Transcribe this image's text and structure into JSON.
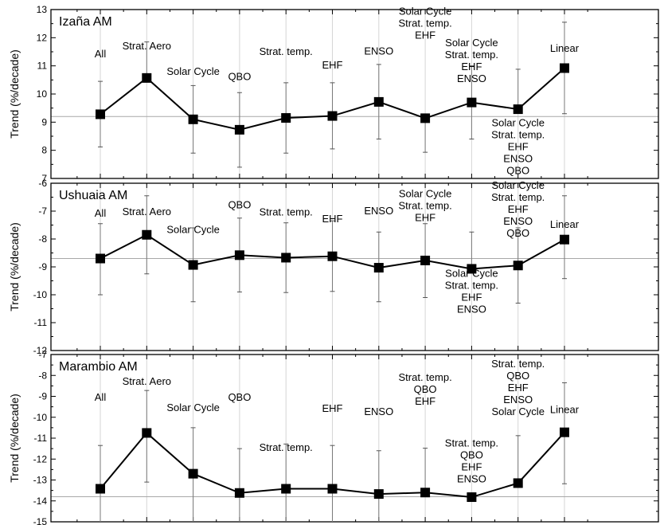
{
  "chart_data": [
    {
      "type": "line",
      "title": "Izaña AM",
      "ylabel": "Trend (%/decade)",
      "ylim": [
        7,
        13
      ],
      "yticks": [
        7,
        8,
        9,
        10,
        11,
        12,
        13
      ],
      "reference_line": 9.2,
      "grid": "vertical",
      "x": [
        1,
        2,
        3,
        4,
        5,
        6,
        7,
        8,
        9,
        10,
        11
      ],
      "values": [
        9.28,
        10.57,
        9.1,
        8.73,
        9.15,
        9.22,
        9.72,
        9.14,
        9.7,
        9.46,
        10.92
      ],
      "err_low": [
        8.12,
        10.57,
        7.9,
        7.4,
        7.9,
        8.05,
        8.4,
        7.93,
        8.4,
        9.46,
        9.3
      ],
      "err_high": [
        10.45,
        11.85,
        10.3,
        10.05,
        10.4,
        10.4,
        11.05,
        9.14,
        11.0,
        10.88,
        12.55
      ],
      "annotations": [
        {
          "x": 1,
          "y": 11.3,
          "lines": [
            "All"
          ]
        },
        {
          "x": 2,
          "y": 11.58,
          "lines": [
            "Strat. Aero"
          ]
        },
        {
          "x": 3,
          "y": 10.68,
          "lines": [
            "Solar Cycle"
          ]
        },
        {
          "x": 4,
          "y": 10.5,
          "lines": [
            "QBO"
          ]
        },
        {
          "x": 5,
          "y": 11.38,
          "lines": [
            "Strat. temp."
          ]
        },
        {
          "x": 6,
          "y": 10.9,
          "lines": [
            "EHF"
          ]
        },
        {
          "x": 7,
          "y": 11.4,
          "lines": [
            "ENSO"
          ]
        },
        {
          "x": 8,
          "y": 12.82,
          "lines": [
            "Solar Cycle",
            "Strat. temp.",
            "EHF"
          ]
        },
        {
          "x": 9,
          "y": 11.7,
          "lines": [
            "Solar Cycle",
            "Strat. temp.",
            "EHF",
            "ENSO"
          ]
        },
        {
          "x": 10,
          "y": 8.85,
          "lines": [
            "Solar Cycle",
            "Strat. temp.",
            "EHF",
            "ENSO",
            "QBO"
          ]
        },
        {
          "x": 11,
          "y": 11.5,
          "lines": [
            "Linear"
          ]
        }
      ]
    },
    {
      "type": "line",
      "title": "Ushuaia AM",
      "ylabel": "Trend (%/decade)",
      "ylim": [
        -12,
        -6
      ],
      "yticks": [
        -12,
        -11,
        -10,
        -9,
        -8,
        -7,
        -6
      ],
      "reference_line": -8.7,
      "grid": "vertical",
      "x": [
        1,
        2,
        3,
        4,
        5,
        6,
        7,
        8,
        9,
        10,
        11
      ],
      "values": [
        -8.7,
        -7.85,
        -8.93,
        -8.58,
        -8.67,
        -8.62,
        -9.03,
        -8.77,
        -9.07,
        -8.95,
        -8.02
      ],
      "err_low": [
        -10.0,
        -9.25,
        -10.25,
        -9.9,
        -9.92,
        -9.88,
        -10.25,
        -10.1,
        -9.07,
        -10.3,
        -9.42
      ],
      "err_high": [
        -7.45,
        -6.45,
        -7.6,
        -7.25,
        -7.42,
        -7.35,
        -7.75,
        -7.45,
        -7.75,
        -7.6,
        -6.45
      ],
      "annotations": [
        {
          "x": 1,
          "y": -7.2,
          "lines": [
            "All"
          ]
        },
        {
          "x": 2,
          "y": -7.14,
          "lines": [
            "Strat. Aero"
          ]
        },
        {
          "x": 3,
          "y": -7.78,
          "lines": [
            "Solar Cycle"
          ]
        },
        {
          "x": 4,
          "y": -6.9,
          "lines": [
            "QBO"
          ]
        },
        {
          "x": 5,
          "y": -7.15,
          "lines": [
            "Strat. temp."
          ]
        },
        {
          "x": 6,
          "y": -7.4,
          "lines": [
            "EHF"
          ]
        },
        {
          "x": 7,
          "y": -7.12,
          "lines": [
            "ENSO"
          ]
        },
        {
          "x": 8,
          "y": -6.5,
          "lines": [
            "Solar Cycle",
            "Strat. temp.",
            "EHF"
          ]
        },
        {
          "x": 9,
          "y": -9.35,
          "lines": [
            "Solar Cycle",
            "Strat. temp.",
            "EHF",
            "ENSO"
          ]
        },
        {
          "x": 10,
          "y": -6.2,
          "lines": [
            "Solar Cycle",
            "Strat. temp.",
            "EHF",
            "ENSO",
            "QBO"
          ]
        },
        {
          "x": 11,
          "y": -7.6,
          "lines": [
            "Linear"
          ]
        }
      ]
    },
    {
      "type": "line",
      "title": "Marambio AM",
      "ylabel": "Trend (%/decade)",
      "ylim": [
        -15,
        -7
      ],
      "yticks": [
        -15,
        -14,
        -13,
        -12,
        -11,
        -10,
        -9,
        -8,
        -7
      ],
      "reference_line": -13.8,
      "grid": "vertical",
      "x": [
        1,
        2,
        3,
        4,
        5,
        6,
        7,
        8,
        9,
        10,
        11
      ],
      "values": [
        -13.42,
        -10.75,
        -12.7,
        -13.62,
        -13.42,
        -13.42,
        -13.67,
        -13.6,
        -13.82,
        -13.15,
        -10.72
      ],
      "err_low": [
        -15.0,
        -13.1,
        -15.0,
        -15.0,
        -15.0,
        -15.0,
        -15.0,
        -13.6,
        -13.82,
        -13.15,
        -13.18
      ],
      "err_high": [
        -11.35,
        -8.72,
        -10.5,
        -11.5,
        -11.28,
        -11.35,
        -11.6,
        -11.48,
        -13.82,
        -10.88,
        -8.35
      ],
      "annotations": [
        {
          "x": 1,
          "y": -9.2,
          "lines": [
            "All"
          ]
        },
        {
          "x": 2,
          "y": -8.45,
          "lines": [
            "Strat. Aero"
          ]
        },
        {
          "x": 3,
          "y": -9.7,
          "lines": [
            "Solar Cycle"
          ]
        },
        {
          "x": 4,
          "y": -9.2,
          "lines": [
            "QBO"
          ]
        },
        {
          "x": 5,
          "y": -11.6,
          "lines": [
            "Strat. temp."
          ]
        },
        {
          "x": 6,
          "y": -9.75,
          "lines": [
            "EHF"
          ]
        },
        {
          "x": 7,
          "y": -9.9,
          "lines": [
            "ENSO"
          ]
        },
        {
          "x": 8,
          "y": -8.25,
          "lines": [
            "Strat. temp.",
            "QBO",
            "EHF"
          ]
        },
        {
          "x": 9,
          "y": -11.4,
          "lines": [
            "Strat. temp.",
            "QBO",
            "EHF",
            "ENSO"
          ]
        },
        {
          "x": 10,
          "y": -7.6,
          "lines": [
            "Strat. temp.",
            "QBO",
            "EHF",
            "ENSO",
            "Solar Cycle"
          ]
        },
        {
          "x": 11,
          "y": -9.8,
          "lines": [
            "Linear"
          ]
        }
      ]
    }
  ]
}
